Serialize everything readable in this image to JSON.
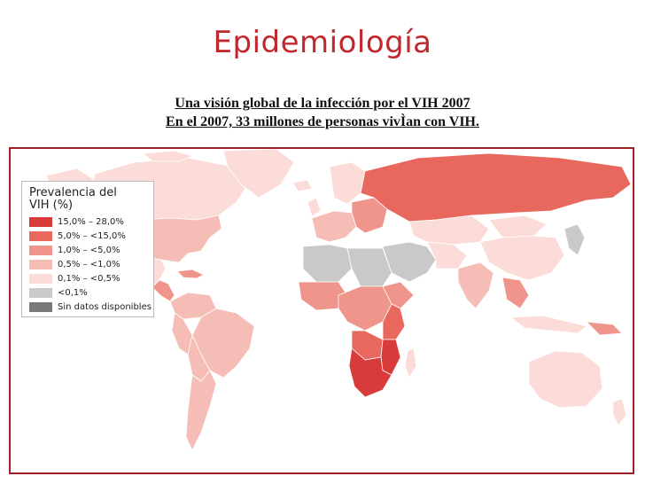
{
  "title": "Epidemiología",
  "subtitle_line1": "Una visión global de la infección por el VIH 2007",
  "subtitle_line2": "En el 2007, 33 millones de personas vivÌan con VIH.",
  "legend": {
    "title_line1": "Prevalencia del",
    "title_line2": "VIH (%)",
    "items": [
      {
        "label": "15,0% – 28,0%",
        "color": "#d93b3b"
      },
      {
        "label": "5,0% – <15,0%",
        "color": "#e8685e"
      },
      {
        "label": "1,0% – <5,0%",
        "color": "#f0958c"
      },
      {
        "label": "0,5% – <1,0%",
        "color": "#f6bcb6"
      },
      {
        "label": "0,1% – <0,5%",
        "color": "#fbdcd8"
      },
      {
        "label": "<0,1%",
        "color": "#c9c9c9"
      },
      {
        "label": "Sin datos disponibles",
        "color": "#7a7a7a"
      }
    ]
  },
  "colors": {
    "title": "#c0282d",
    "frame_border": "#a01f24",
    "country_border": "#ffffff"
  }
}
